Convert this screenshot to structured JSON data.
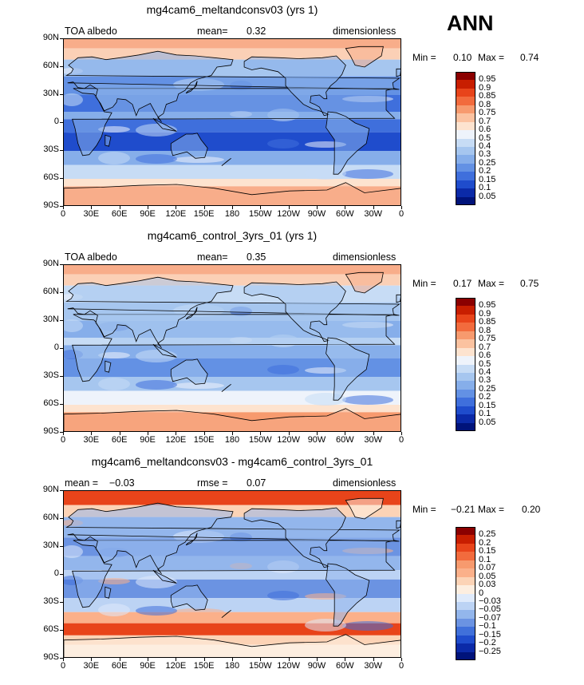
{
  "season_label": "ANN",
  "axis": {
    "lat_labels": [
      "90N",
      "60N",
      "30N",
      "0",
      "30S",
      "60S",
      "90S"
    ],
    "lon_labels": [
      "0",
      "30E",
      "60E",
      "90E",
      "120E",
      "150E",
      "180",
      "150W",
      "120W",
      "90W",
      "60W",
      "30W",
      "0"
    ]
  },
  "panels": [
    {
      "title": "mg4cam6_meltandconsv03 (yrs 1)",
      "left_label": "TOA albedo",
      "mid_label": "mean=",
      "mid_value": "0.32",
      "right_label": "dimensionless",
      "min_label": "Min =",
      "min_value": "0.10",
      "max_label": "Max =",
      "max_value": "0.74",
      "colorbar_labels": [
        "0.95",
        "0.9",
        "0.85",
        "0.8",
        "0.75",
        "0.7",
        "0.6",
        "0.5",
        "0.4",
        "0.3",
        "0.25",
        "0.2",
        "0.15",
        "0.1",
        "0.05"
      ],
      "colorbar_colors": [
        "#8b0000",
        "#c81e00",
        "#e8441a",
        "#f26b3d",
        "#f79a6e",
        "#fbc2a0",
        "#fde3cf",
        "#eef3fb",
        "#c7dcf5",
        "#a6c6ef",
        "#86aeea",
        "#6391e4",
        "#3f6fdc",
        "#1f4ccc",
        "#0b2aa8",
        "#00137a"
      ],
      "map_variant": "model"
    },
    {
      "title": "mg4cam6_control_3yrs_01 (yrs 1)",
      "left_label": "TOA albedo",
      "mid_label": "mean=",
      "mid_value": "0.35",
      "right_label": "dimensionless",
      "min_label": "Min =",
      "min_value": "0.17",
      "max_label": "Max =",
      "max_value": "0.75",
      "colorbar_labels": [
        "0.95",
        "0.9",
        "0.85",
        "0.8",
        "0.75",
        "0.7",
        "0.6",
        "0.5",
        "0.4",
        "0.3",
        "0.25",
        "0.2",
        "0.15",
        "0.1",
        "0.05"
      ],
      "colorbar_colors": [
        "#8b0000",
        "#c81e00",
        "#e8441a",
        "#f26b3d",
        "#f79a6e",
        "#fbc2a0",
        "#fde3cf",
        "#eef3fb",
        "#c7dcf5",
        "#a6c6ef",
        "#86aeea",
        "#6391e4",
        "#3f6fdc",
        "#1f4ccc",
        "#0b2aa8",
        "#00137a"
      ],
      "map_variant": "control"
    },
    {
      "title": "mg4cam6_meltandconsv03 - mg4cam6_control_3yrs_01",
      "left_label": "mean =",
      "left_value": "−0.03",
      "mid_label": "rmse =",
      "mid_value": "0.07",
      "right_label": "dimensionless",
      "min_label": "Min =",
      "min_value": "−0.21",
      "max_label": "Max =",
      "max_value": "0.20",
      "colorbar_labels": [
        "0.25",
        "0.2",
        "0.15",
        "0.1",
        "0.07",
        "0.05",
        "0.03",
        "0",
        "−0.03",
        "−0.05",
        "−0.07",
        "−0.1",
        "−0.15",
        "−0.2",
        "−0.25"
      ],
      "colorbar_colors": [
        "#8b0000",
        "#c81e00",
        "#e8441a",
        "#f26b3d",
        "#f79a6e",
        "#fbb08a",
        "#fcd3b6",
        "#fdeee0",
        "#dfeafb",
        "#bcd3f4",
        "#93b6ec",
        "#6b93e2",
        "#4070da",
        "#1f4ccc",
        "#0b2aa8",
        "#00137a"
      ],
      "map_variant": "diff"
    }
  ]
}
